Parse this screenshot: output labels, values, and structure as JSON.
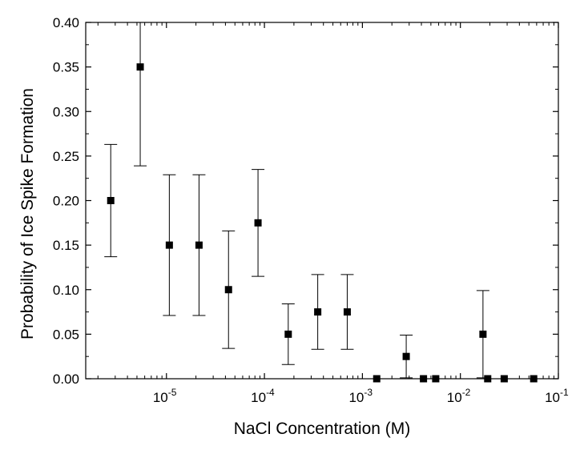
{
  "chart_data": {
    "type": "scatter",
    "title": "",
    "xlabel": "NaCl Concentration (M)",
    "ylabel": "Probability of Ice Spike Formation",
    "xscale": "log",
    "xlim": [
      1.5e-06,
      0.1
    ],
    "ylim": [
      0,
      0.4
    ],
    "grid": false,
    "x_ticks": [
      {
        "value": 1e-05,
        "base": "10",
        "exp": "-5"
      },
      {
        "value": 0.0001,
        "base": "10",
        "exp": "-4"
      },
      {
        "value": 0.001,
        "base": "10",
        "exp": "-3"
      },
      {
        "value": 0.01,
        "base": "10",
        "exp": "-2"
      },
      {
        "value": 0.1,
        "base": "10",
        "exp": "-1"
      }
    ],
    "y_ticks": [
      "0.00",
      "0.05",
      "0.10",
      "0.15",
      "0.20",
      "0.25",
      "0.30",
      "0.35",
      "0.40"
    ],
    "series": [
      {
        "points": [
          {
            "x": 2.7e-06,
            "y": 0.2,
            "err": 0.063
          },
          {
            "x": 5.4e-06,
            "y": 0.35,
            "err": 0.111
          },
          {
            "x": 1.07e-05,
            "y": 0.15,
            "err": 0.079
          },
          {
            "x": 2.15e-05,
            "y": 0.15,
            "err": 0.079
          },
          {
            "x": 4.3e-05,
            "y": 0.1,
            "err": 0.066
          },
          {
            "x": 8.6e-05,
            "y": 0.175,
            "err": 0.06
          },
          {
            "x": 0.000175,
            "y": 0.05,
            "err": 0.034
          },
          {
            "x": 0.00035,
            "y": 0.075,
            "err": 0.042
          },
          {
            "x": 0.0007,
            "y": 0.075,
            "err": 0.042
          },
          {
            "x": 0.0014,
            "y": 0.0,
            "err": 0
          },
          {
            "x": 0.0028,
            "y": 0.025,
            "err": 0.024
          },
          {
            "x": 0.0042,
            "y": 0.0,
            "err": 0
          },
          {
            "x": 0.0056,
            "y": 0.0,
            "err": 0
          },
          {
            "x": 0.017,
            "y": 0.05,
            "err": 0.049
          },
          {
            "x": 0.019,
            "y": 0.0,
            "err": 0
          },
          {
            "x": 0.028,
            "y": 0.0,
            "err": 0
          },
          {
            "x": 0.056,
            "y": 0.0,
            "err": 0
          }
        ]
      }
    ]
  }
}
